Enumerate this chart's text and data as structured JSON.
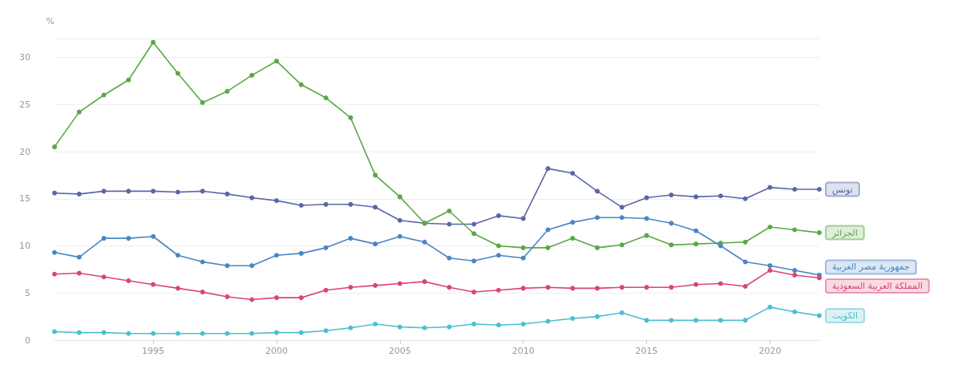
{
  "chart_data": {
    "type": "line",
    "ylabel": "%",
    "x": [
      1991,
      1992,
      1993,
      1994,
      1995,
      1996,
      1997,
      1998,
      1999,
      2000,
      2001,
      2002,
      2003,
      2004,
      2005,
      2006,
      2007,
      2008,
      2009,
      2010,
      2011,
      2012,
      2013,
      2014,
      2015,
      2016,
      2017,
      2018,
      2019,
      2020,
      2021,
      2022
    ],
    "series": [
      {
        "name": "تونس",
        "color": "#5a67a8",
        "values": [
          15.6,
          15.5,
          15.8,
          15.8,
          15.8,
          15.7,
          15.8,
          15.5,
          15.1,
          14.8,
          14.3,
          14.4,
          14.4,
          14.1,
          12.7,
          12.4,
          12.3,
          12.3,
          13.2,
          12.9,
          18.2,
          17.7,
          15.8,
          14.1,
          15.1,
          15.4,
          15.2,
          15.3,
          15.0,
          16.2,
          16.0,
          16.0
        ]
      },
      {
        "name": "الجزائر",
        "color": "#5aa844",
        "values": [
          20.5,
          24.2,
          26.0,
          27.6,
          31.6,
          28.3,
          25.2,
          26.4,
          28.1,
          29.6,
          27.1,
          25.7,
          23.6,
          17.5,
          15.2,
          12.4,
          13.7,
          11.3,
          10.0,
          9.8,
          9.8,
          10.8,
          9.8,
          10.1,
          11.1,
          10.1,
          10.2,
          10.3,
          10.4,
          12.0,
          11.7,
          11.4
        ]
      },
      {
        "name": "جمهورية مصر العربية",
        "color": "#4a86c4",
        "values": [
          9.3,
          8.8,
          10.8,
          10.8,
          11.0,
          9.0,
          8.3,
          7.9,
          7.9,
          9.0,
          9.2,
          9.8,
          10.8,
          10.2,
          11.0,
          10.4,
          8.7,
          8.4,
          9.0,
          8.7,
          11.7,
          12.5,
          13.0,
          13.0,
          12.9,
          12.4,
          11.6,
          10.0,
          8.3,
          7.9,
          7.4,
          6.9
        ]
      },
      {
        "name": "المملكة العربية السعودية",
        "color": "#d9457a",
        "values": [
          7.0,
          7.1,
          6.7,
          6.3,
          5.9,
          5.5,
          5.1,
          4.6,
          4.3,
          4.5,
          4.5,
          5.3,
          5.6,
          5.8,
          6.0,
          6.2,
          5.6,
          5.1,
          5.3,
          5.5,
          5.6,
          5.5,
          5.5,
          5.6,
          5.6,
          5.6,
          5.9,
          6.0,
          5.7,
          7.4,
          6.9,
          6.6
        ]
      },
      {
        "name": "الكويت",
        "color": "#4bbfcf",
        "values": [
          0.9,
          0.8,
          0.8,
          0.7,
          0.7,
          0.7,
          0.7,
          0.7,
          0.7,
          0.8,
          0.8,
          1.0,
          1.3,
          1.7,
          1.4,
          1.3,
          1.4,
          1.7,
          1.6,
          1.7,
          2.0,
          2.3,
          2.5,
          2.9,
          2.1,
          2.1,
          2.1,
          2.1,
          2.1,
          3.5,
          3.0,
          2.6
        ]
      }
    ],
    "xlim": [
      1991,
      2022
    ],
    "xticks": [
      1995,
      2000,
      2005,
      2010,
      2015,
      2020
    ],
    "ylim": [
      0,
      32
    ],
    "yticks": [
      0,
      5,
      10,
      15,
      20,
      25,
      30
    ],
    "grid": "y",
    "marker": "circle",
    "line_style": "solid",
    "legend": false
  }
}
